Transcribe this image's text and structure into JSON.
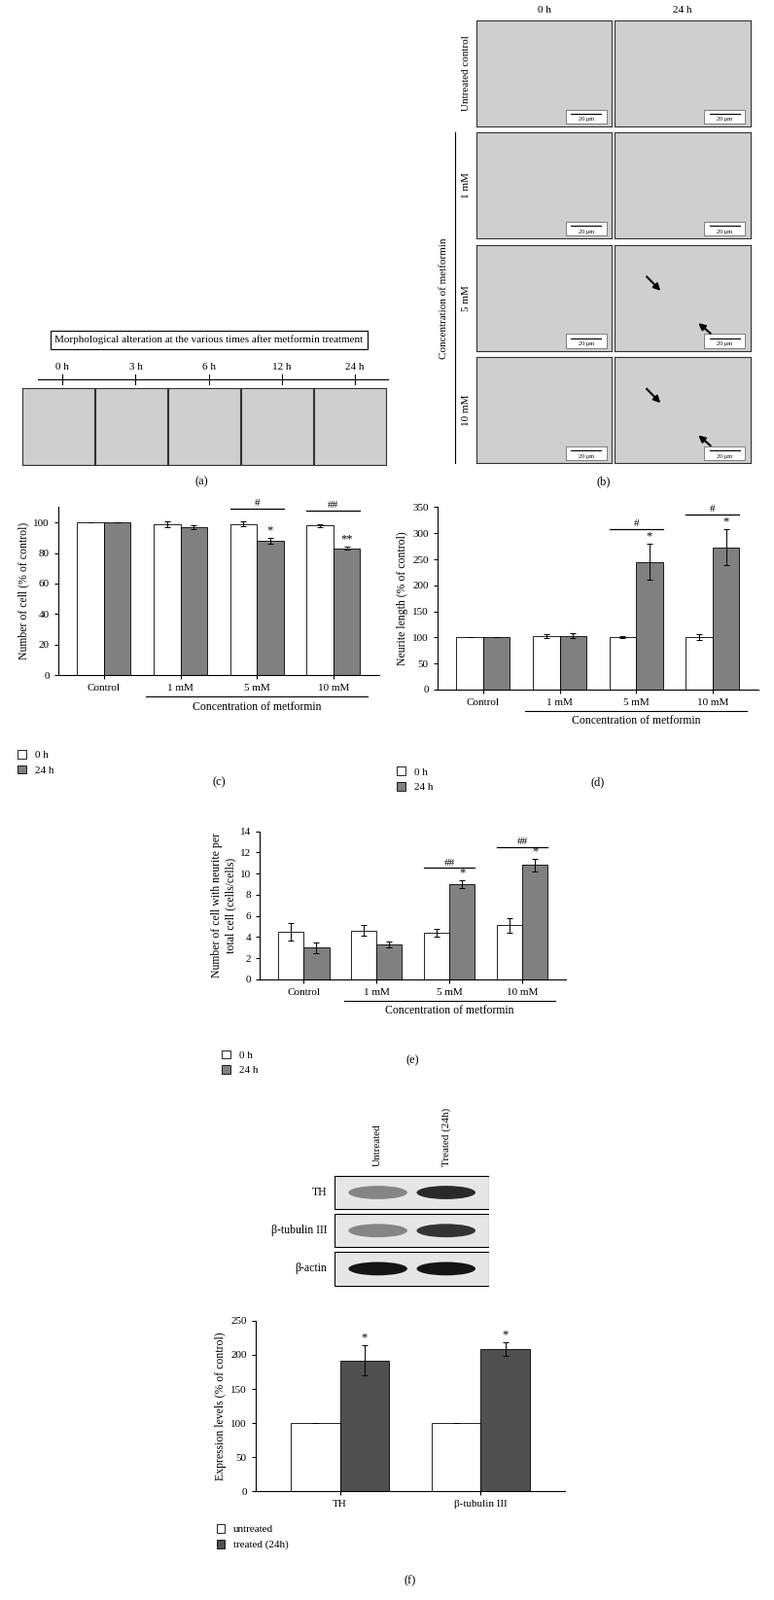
{
  "panel_a": {
    "label": "(a)",
    "title": "Morphological alteration at the various times after metformin treatment",
    "timepoints": [
      "0 h",
      "3 h",
      "6 h",
      "12 h",
      "24 h"
    ]
  },
  "panel_b": {
    "label": "(b)",
    "columns": [
      "0 h",
      "24 h"
    ],
    "rows": [
      "Untreated control",
      "1 mM",
      "5 mM",
      "10 mM"
    ],
    "group_label": "Concentration of metformin",
    "scale_bar": "20 μm"
  },
  "blot": {
    "lanes": [
      "Untreated",
      "Treated (24h)"
    ],
    "bands": [
      "TH",
      "β-tubulin III",
      "β-actin"
    ]
  },
  "chart_data": [
    {
      "panel": "(c)",
      "type": "bar",
      "categories": [
        "Control",
        "1 mM",
        "5 mM",
        "10 mM"
      ],
      "group_label": "Concentration of metformin",
      "group_categories": [
        "1 mM",
        "5 mM",
        "10 mM"
      ],
      "y_label": "Number of cell (% of control)",
      "ylim": [
        0,
        110
      ],
      "yticks": [
        0,
        20,
        40,
        60,
        80,
        100
      ],
      "legend": "upper left",
      "series": [
        {
          "name": "0 h",
          "color": "#ffffff",
          "values": [
            100,
            99,
            99,
            98
          ],
          "errors": [
            0,
            2,
            1.5,
            1
          ]
        },
        {
          "name": "24 h",
          "color": "#808080",
          "values": [
            100,
            97,
            88,
            83
          ],
          "errors": [
            0,
            1.5,
            2,
            1
          ]
        }
      ],
      "annotations": [
        {
          "text": "#",
          "category": "5 mM"
        },
        {
          "text": "##",
          "category": "10 mM"
        },
        {
          "text": "*",
          "category": "5 mM",
          "series": "24 h"
        },
        {
          "text": "**",
          "category": "10 mM",
          "series": "24 h"
        }
      ]
    },
    {
      "panel": "(d)",
      "type": "bar",
      "categories": [
        "Control",
        "1 mM",
        "5 mM",
        "10 mM"
      ],
      "group_label": "Concentration of metformin",
      "group_categories": [
        "1 mM",
        "5 mM",
        "10 mM"
      ],
      "y_label": "Neurite length (% of control)",
      "ylim": [
        0,
        350
      ],
      "yticks": [
        0,
        50,
        100,
        150,
        200,
        250,
        300,
        350
      ],
      "legend": "upper left",
      "series": [
        {
          "name": "0 h",
          "color": "#ffffff",
          "values": [
            100,
            102,
            101,
            101
          ],
          "errors": [
            0,
            4,
            2,
            5
          ]
        },
        {
          "name": "24 h",
          "color": "#808080",
          "values": [
            100,
            103,
            245,
            273
          ],
          "errors": [
            0,
            5,
            35,
            35
          ]
        }
      ],
      "annotations": [
        {
          "text": "#",
          "category": "5 mM"
        },
        {
          "text": "#",
          "category": "10 mM"
        },
        {
          "text": "*",
          "category": "5 mM",
          "series": "24 h"
        },
        {
          "text": "*",
          "category": "10 mM",
          "series": "24 h"
        }
      ]
    },
    {
      "panel": "(e)",
      "type": "bar",
      "categories": [
        "Control",
        "1 mM",
        "5 mM",
        "10 mM"
      ],
      "group_label": "Concentration of metformin",
      "group_categories": [
        "1 mM",
        "5 mM",
        "10 mM"
      ],
      "y_label": "Number of cell with neurite per\ntotal cell (cells/cells)",
      "ylim": [
        0,
        14
      ],
      "yticks": [
        0,
        2,
        4,
        6,
        8,
        10,
        12,
        14
      ],
      "legend": "upper left",
      "series": [
        {
          "name": "0 h",
          "color": "#ffffff",
          "values": [
            4.5,
            4.6,
            4.4,
            5.1
          ],
          "errors": [
            0.8,
            0.5,
            0.4,
            0.7
          ]
        },
        {
          "name": "24 h",
          "color": "#808080",
          "values": [
            3.0,
            3.3,
            9.0,
            10.8
          ],
          "errors": [
            0.5,
            0.3,
            0.4,
            0.6
          ]
        }
      ],
      "annotations": [
        {
          "text": "##",
          "category": "5 mM"
        },
        {
          "text": "##",
          "category": "10 mM"
        },
        {
          "text": "*",
          "category": "5 mM",
          "series": "24 h"
        },
        {
          "text": "*",
          "category": "10 mM",
          "series": "24 h"
        }
      ]
    },
    {
      "panel": "(f)",
      "type": "bar",
      "categories": [
        "TH",
        "β-tubulin III"
      ],
      "y_label": "Expression levels (% of control)",
      "ylim": [
        0,
        250
      ],
      "yticks": [
        0,
        50,
        100,
        150,
        200,
        250
      ],
      "legend": "upper left",
      "series": [
        {
          "name": "untreated",
          "color": "#ffffff",
          "values": [
            100,
            100
          ],
          "errors": [
            0,
            0
          ]
        },
        {
          "name": "treated (24h)",
          "color": "#505050",
          "values": [
            192,
            209
          ],
          "errors": [
            22,
            10
          ]
        }
      ],
      "annotations": [
        {
          "text": "*",
          "category": "TH",
          "series": "treated (24h)"
        },
        {
          "text": "*",
          "category": "β-tubulin III",
          "series": "treated (24h)"
        }
      ]
    }
  ]
}
